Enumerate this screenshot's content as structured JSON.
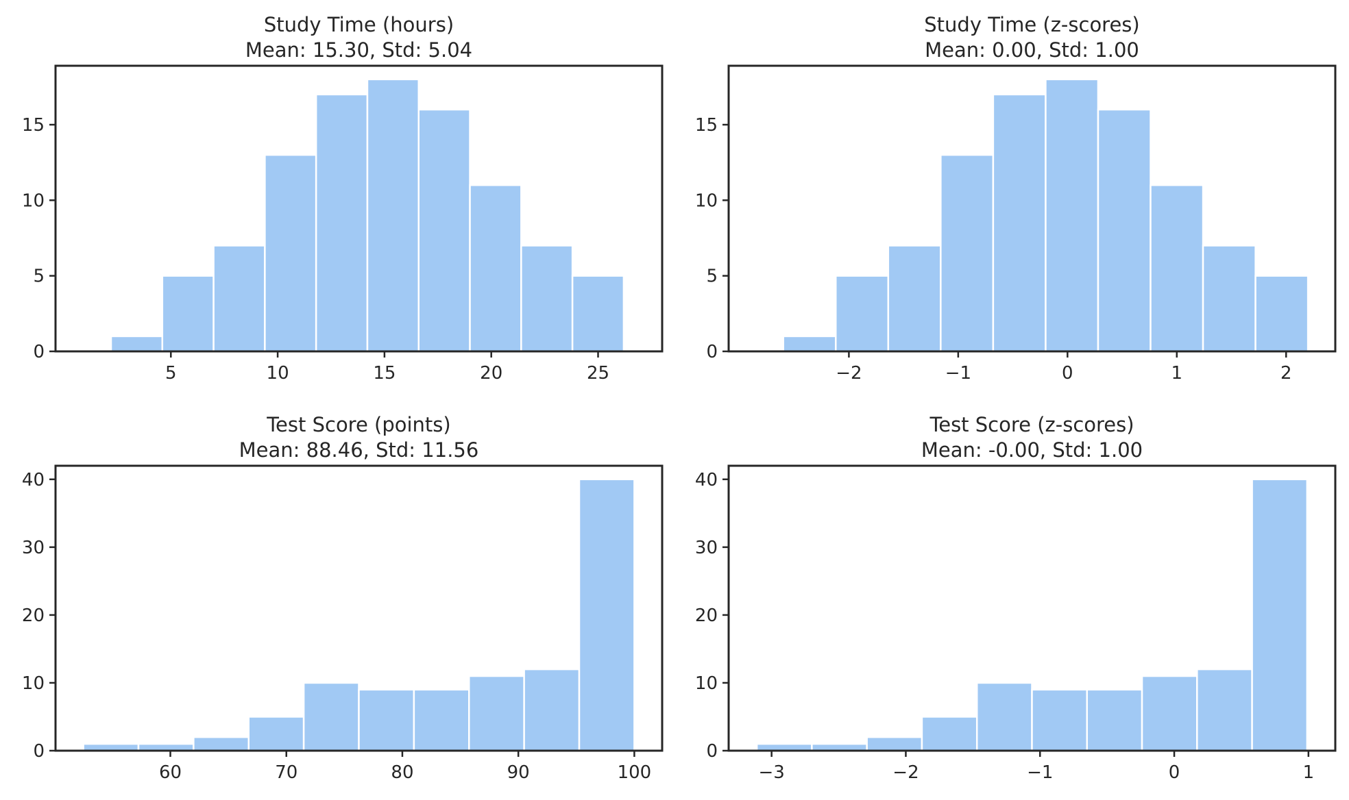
{
  "chart_data": [
    {
      "type": "bar",
      "title": "Study Time (hours)",
      "subtitle": "Mean: 15.30, Std: 5.04",
      "xlabel": "",
      "ylabel": "",
      "bin_edges": [
        2.2,
        4.6,
        7.0,
        9.4,
        11.8,
        14.2,
        16.6,
        19.0,
        21.4,
        23.8,
        26.2
      ],
      "values": [
        1,
        5,
        7,
        13,
        17,
        18,
        16,
        11,
        7,
        5
      ],
      "xlim": [
        -0.4,
        28.0
      ],
      "ylim": [
        0,
        18.9
      ],
      "xticks": [
        5,
        10,
        15,
        20,
        25
      ],
      "xtick_labels": [
        "5",
        "10",
        "15",
        "20",
        "25"
      ],
      "yticks": [
        0,
        5,
        10,
        15
      ],
      "ytick_labels": [
        "0",
        "5",
        "10",
        "15"
      ],
      "grid": false,
      "color": "#a1c9f4"
    },
    {
      "type": "bar",
      "title": "Study Time (z-scores)",
      "subtitle": "Mean: 0.00, Std: 1.00",
      "xlabel": "",
      "ylabel": "",
      "bin_edges": [
        -2.6,
        -2.12,
        -1.64,
        -1.16,
        -0.68,
        -0.2,
        0.28,
        0.76,
        1.24,
        1.72,
        2.2
      ],
      "values": [
        1,
        5,
        7,
        13,
        17,
        18,
        16,
        11,
        7,
        5
      ],
      "xlim": [
        -3.1,
        2.45
      ],
      "ylim": [
        0,
        18.9
      ],
      "xticks": [
        -2,
        -1,
        0,
        1,
        2
      ],
      "xtick_labels": [
        "−2",
        "−1",
        "0",
        "1",
        "2"
      ],
      "yticks": [
        0,
        5,
        10,
        15
      ],
      "ytick_labels": [
        "0",
        "5",
        "10",
        "15"
      ],
      "grid": false,
      "color": "#a1c9f4"
    },
    {
      "type": "bar",
      "title": "Test Score (points)",
      "subtitle": "Mean: 88.46, Std: 11.56",
      "xlabel": "",
      "ylabel": "",
      "bin_edges": [
        52.5,
        57.25,
        62.0,
        66.75,
        71.5,
        76.25,
        81.0,
        85.75,
        90.5,
        95.25,
        100.0
      ],
      "values": [
        1,
        1,
        2,
        5,
        10,
        9,
        9,
        11,
        12,
        40
      ],
      "xlim": [
        50.1,
        102.4
      ],
      "ylim": [
        0,
        42
      ],
      "xticks": [
        60,
        70,
        80,
        90,
        100
      ],
      "xtick_labels": [
        "60",
        "70",
        "80",
        "90",
        "100"
      ],
      "yticks": [
        0,
        10,
        20,
        30,
        40
      ],
      "ytick_labels": [
        "0",
        "10",
        "20",
        "30",
        "40"
      ],
      "grid": false,
      "color": "#a1c9f4"
    },
    {
      "type": "bar",
      "title": "Test Score (z-scores)",
      "subtitle": "Mean: -0.00, Std: 1.00",
      "xlabel": "",
      "ylabel": "",
      "bin_edges": [
        -3.11,
        -2.7,
        -2.29,
        -1.88,
        -1.47,
        -1.06,
        -0.65,
        -0.24,
        0.17,
        0.58,
        0.99
      ],
      "values": [
        1,
        1,
        2,
        5,
        10,
        9,
        9,
        11,
        12,
        40
      ],
      "xlim": [
        -3.32,
        1.2
      ],
      "ylim": [
        0,
        42
      ],
      "xticks": [
        -3,
        -2,
        -1,
        0,
        1
      ],
      "xtick_labels": [
        "−3",
        "−2",
        "−1",
        "0",
        "1"
      ],
      "yticks": [
        0,
        10,
        20,
        30,
        40
      ],
      "ytick_labels": [
        "0",
        "10",
        "20",
        "30",
        "40"
      ],
      "grid": false,
      "color": "#a1c9f4"
    }
  ]
}
